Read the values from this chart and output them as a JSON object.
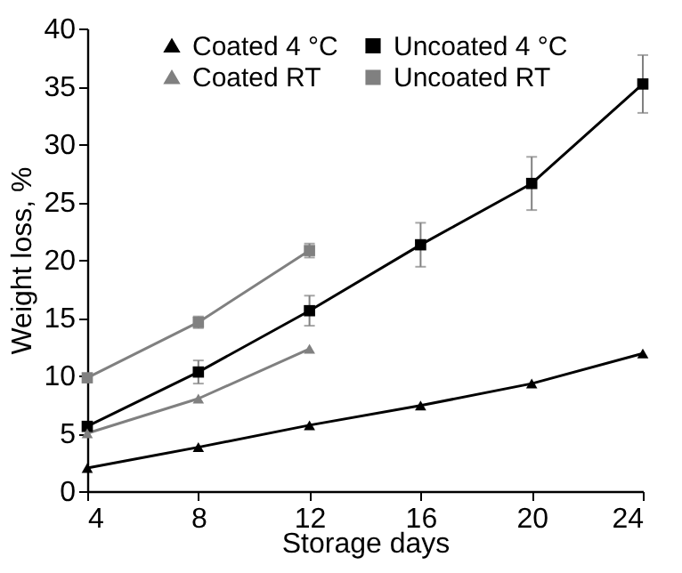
{
  "chart_data": {
    "type": "line",
    "xlabel": "Storage days",
    "ylabel": "Weight loss, %",
    "x": [
      4,
      8,
      12,
      16,
      20,
      24
    ],
    "xlim": [
      4,
      24
    ],
    "xticks": [
      4,
      8,
      12,
      16,
      20,
      24
    ],
    "ylim": [
      0,
      40
    ],
    "yticks": [
      0,
      5,
      10,
      15,
      20,
      25,
      30,
      35,
      40
    ],
    "grid": false,
    "legend": "top",
    "series": [
      {
        "name": "Coated 4 °C",
        "color": "#000000",
        "marker": "triangle",
        "values": [
          2.0,
          3.8,
          5.7,
          7.4,
          9.3,
          11.9
        ]
      },
      {
        "name": "Uncoated 4 °C",
        "color": "#000000",
        "marker": "square",
        "values": [
          5.6,
          10.3,
          15.6,
          21.3,
          26.6,
          35.2
        ],
        "errors": [
          0.3,
          1.0,
          1.3,
          1.9,
          2.3,
          2.5
        ]
      },
      {
        "name": "Coated RT",
        "color": "#808080",
        "marker": "triangle",
        "values": [
          5.0,
          8.0,
          12.3,
          null,
          null,
          null
        ]
      },
      {
        "name": "Uncoated RT",
        "color": "#808080",
        "marker": "square",
        "values": [
          9.8,
          14.6,
          20.8,
          null,
          null,
          null
        ],
        "errors": [
          0.3,
          0.5,
          0.6,
          null,
          null,
          null
        ]
      }
    ]
  }
}
